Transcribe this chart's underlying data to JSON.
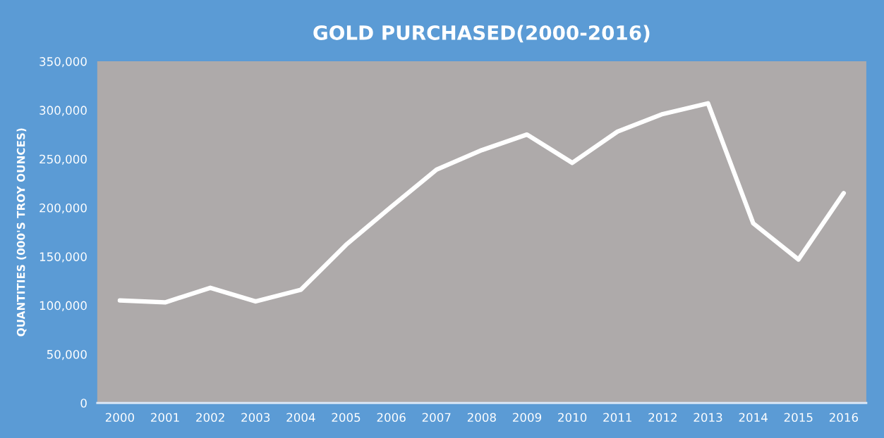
{
  "chart_data": {
    "type": "line",
    "title": "GOLD PURCHASED(2000-2016)",
    "ylabel": "QUANTITIES (000'S TROY OUNCES)",
    "categories": [
      "2000",
      "2001",
      "2002",
      "2003",
      "2004",
      "2005",
      "2006",
      "2007",
      "2008",
      "2009",
      "2010",
      "2011",
      "2012",
      "2013",
      "2014",
      "2015",
      "2016"
    ],
    "series": [
      {
        "color": "#ffffff",
        "values": [
          105000,
          103000,
          118000,
          104000,
          116000,
          162000,
          201000,
          239000,
          259000,
          275000,
          246000,
          278000,
          296000,
          307000,
          184000,
          147000,
          215000
        ]
      }
    ],
    "ylim": [
      0,
      350000
    ],
    "yticks": [
      {
        "value": 0,
        "label": "0"
      },
      {
        "value": 50000,
        "label": "50,000"
      },
      {
        "value": 100000,
        "label": "100,000"
      },
      {
        "value": 150000,
        "label": "150,000"
      },
      {
        "value": 200000,
        "label": "200,000"
      },
      {
        "value": 250000,
        "label": "250,000"
      },
      {
        "value": 300000,
        "label": "300,000"
      },
      {
        "value": 350000,
        "label": "350,000"
      }
    ],
    "grid": false,
    "legend": false,
    "marker": "none",
    "line_style": "solid"
  }
}
